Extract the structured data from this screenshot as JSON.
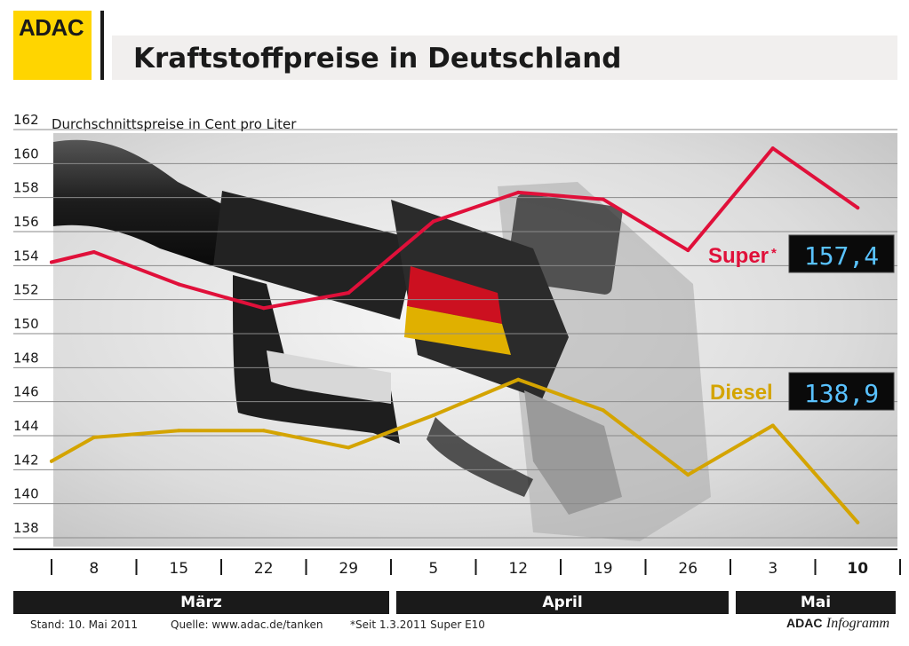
{
  "header": {
    "logo_text": "ADAC",
    "title": "Kraftstoffpreise in Deutschland"
  },
  "chart_data": {
    "type": "line",
    "subtitle": "Durchschnittspreise in Cent pro Liter",
    "x": [
      "8",
      "15",
      "22",
      "29",
      "5",
      "12",
      "19",
      "26",
      "3",
      "10"
    ],
    "x_start_point": "1",
    "ylim": [
      138,
      162
    ],
    "y_ticks": [
      138,
      140,
      142,
      144,
      146,
      148,
      150,
      152,
      154,
      156,
      158,
      160,
      162
    ],
    "grid": true,
    "months": [
      {
        "label": "März",
        "from": 0,
        "to": 3
      },
      {
        "label": "April",
        "from": 4,
        "to": 7
      },
      {
        "label": "Mai",
        "from": 8,
        "to": 9
      }
    ],
    "series": [
      {
        "name": "Super",
        "marker": "*",
        "color": "#e0103a",
        "display_value": "157,4",
        "start_value": 154.2,
        "values": [
          154.8,
          152.9,
          151.5,
          152.4,
          156.6,
          158.3,
          157.9,
          154.9,
          160.9,
          157.4
        ]
      },
      {
        "name": "Diesel",
        "color": "#d4a400",
        "display_value": "138,9",
        "start_value": 142.5,
        "values": [
          143.9,
          144.3,
          144.3,
          143.3,
          145.2,
          147.3,
          145.5,
          141.7,
          144.6,
          138.9
        ]
      }
    ]
  },
  "footer": {
    "stand": "Stand:  10. Mai 2011",
    "quelle": "Quelle: www.adac.de/tanken",
    "note": "*Seit 1.3.2011 Super E10",
    "brand_bold": "ADAC",
    "brand_italic": "Infogramm"
  }
}
